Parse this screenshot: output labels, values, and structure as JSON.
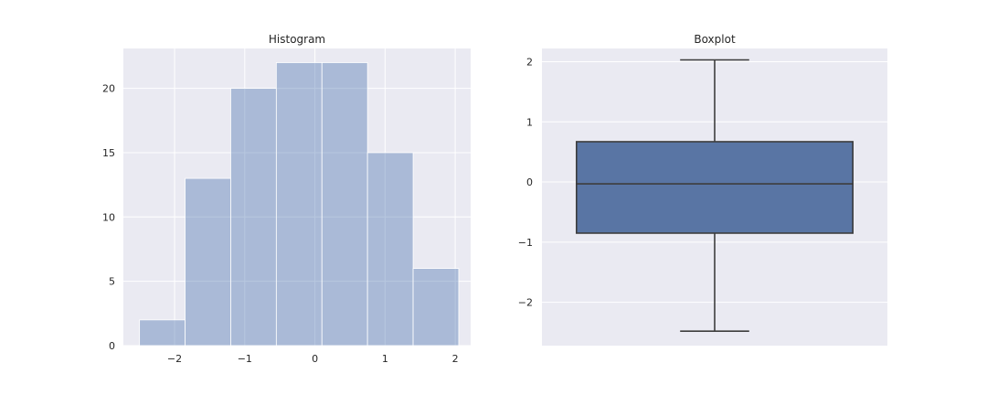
{
  "chart_data": [
    {
      "type": "histogram",
      "title": "Histogram",
      "xlabel": "",
      "ylabel": "",
      "xlim": [
        -2.73,
        2.22
      ],
      "ylim": [
        0,
        23.1
      ],
      "xticks": [
        -2,
        -1,
        0,
        1,
        2
      ],
      "xtick_labels": [
        "−2",
        "−1",
        "0",
        "1",
        "2"
      ],
      "yticks": [
        0,
        5,
        10,
        15,
        20
      ],
      "ytick_labels": [
        "0",
        "5",
        "10",
        "15",
        "20"
      ],
      "bin_edges": [
        -2.5,
        -1.85,
        -1.2,
        -0.55,
        0.1,
        0.75,
        1.4,
        2.05
      ],
      "counts": [
        2,
        13,
        20,
        22,
        22,
        15,
        6
      ],
      "color": "#4c72b0",
      "alpha": 0.4,
      "grid": true
    },
    {
      "type": "boxplot",
      "title": "Boxplot",
      "xlabel": "",
      "ylabel": "",
      "ylim": [
        -2.72,
        2.22
      ],
      "yticks": [
        -2,
        -1,
        0,
        1,
        2
      ],
      "ytick_labels": [
        "−2",
        "−1",
        "0",
        "1",
        "2"
      ],
      "whisker_low": -2.48,
      "q1": -0.85,
      "median": -0.03,
      "q3": 0.67,
      "whisker_high": 2.03,
      "color": "#5975a4",
      "grid": true
    }
  ]
}
